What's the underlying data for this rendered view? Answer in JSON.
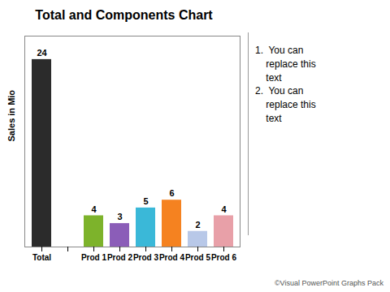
{
  "chart_data": {
    "type": "bar",
    "title": "Total and Components Chart",
    "categories": [
      "Total",
      null,
      "Prod 1",
      "Prod 2",
      "Prod 3",
      "Prod 4",
      "Prod 5",
      "Prod 6"
    ],
    "values": [
      24,
      0,
      4,
      3,
      5,
      6,
      2,
      4
    ],
    "value_labels": [
      "24",
      null,
      "4",
      "3",
      "5",
      "6",
      "2",
      "4"
    ],
    "colors": [
      "#2b2b2b",
      "#ffffff",
      "#7db32b",
      "#8b5db8",
      "#3ab8d8",
      "#f58220",
      "#b8c8e8",
      "#e8a0a8"
    ],
    "ylabel": "Sales in Mio",
    "ylim": [
      0,
      27
    ],
    "tick_labels": "x",
    "data_labels": true,
    "annotations": [
      "1.  You can",
      "    replace this",
      "    text",
      "2.  You can",
      "    replace this",
      "    text"
    ],
    "caption": "©Visual PowerPoint Graphs Pack"
  }
}
